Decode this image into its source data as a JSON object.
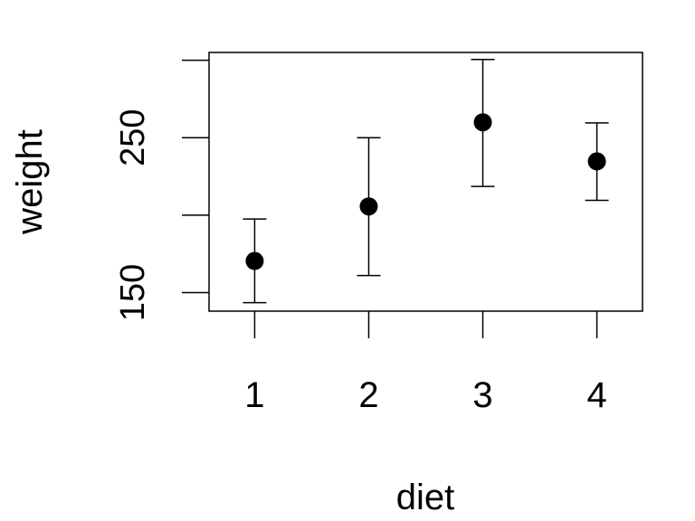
{
  "chart_data": {
    "type": "scatter",
    "subtype": "errorbar",
    "title": "",
    "xlabel": "diet",
    "ylabel": "weight",
    "categories": [
      "1",
      "2",
      "3",
      "4"
    ],
    "x": [
      1,
      2,
      3,
      4
    ],
    "series": [
      {
        "means": [
          170.4,
          205.6,
          259.9,
          234.7
        ],
        "lower": [
          143.5,
          161.0,
          218.5,
          209.5
        ],
        "upper": [
          197.5,
          250.0,
          300.5,
          259.5
        ]
      }
    ],
    "xlim": [
      0.6,
      4.4
    ],
    "ylim": [
      138,
      305
    ],
    "y_ticks": [
      150,
      200,
      250,
      300
    ],
    "y_tick_labels": [
      "150",
      "",
      "250",
      ""
    ],
    "grid": false,
    "colors": {
      "points": "#000000",
      "lines": "#000000",
      "background": "#ffffff"
    }
  }
}
